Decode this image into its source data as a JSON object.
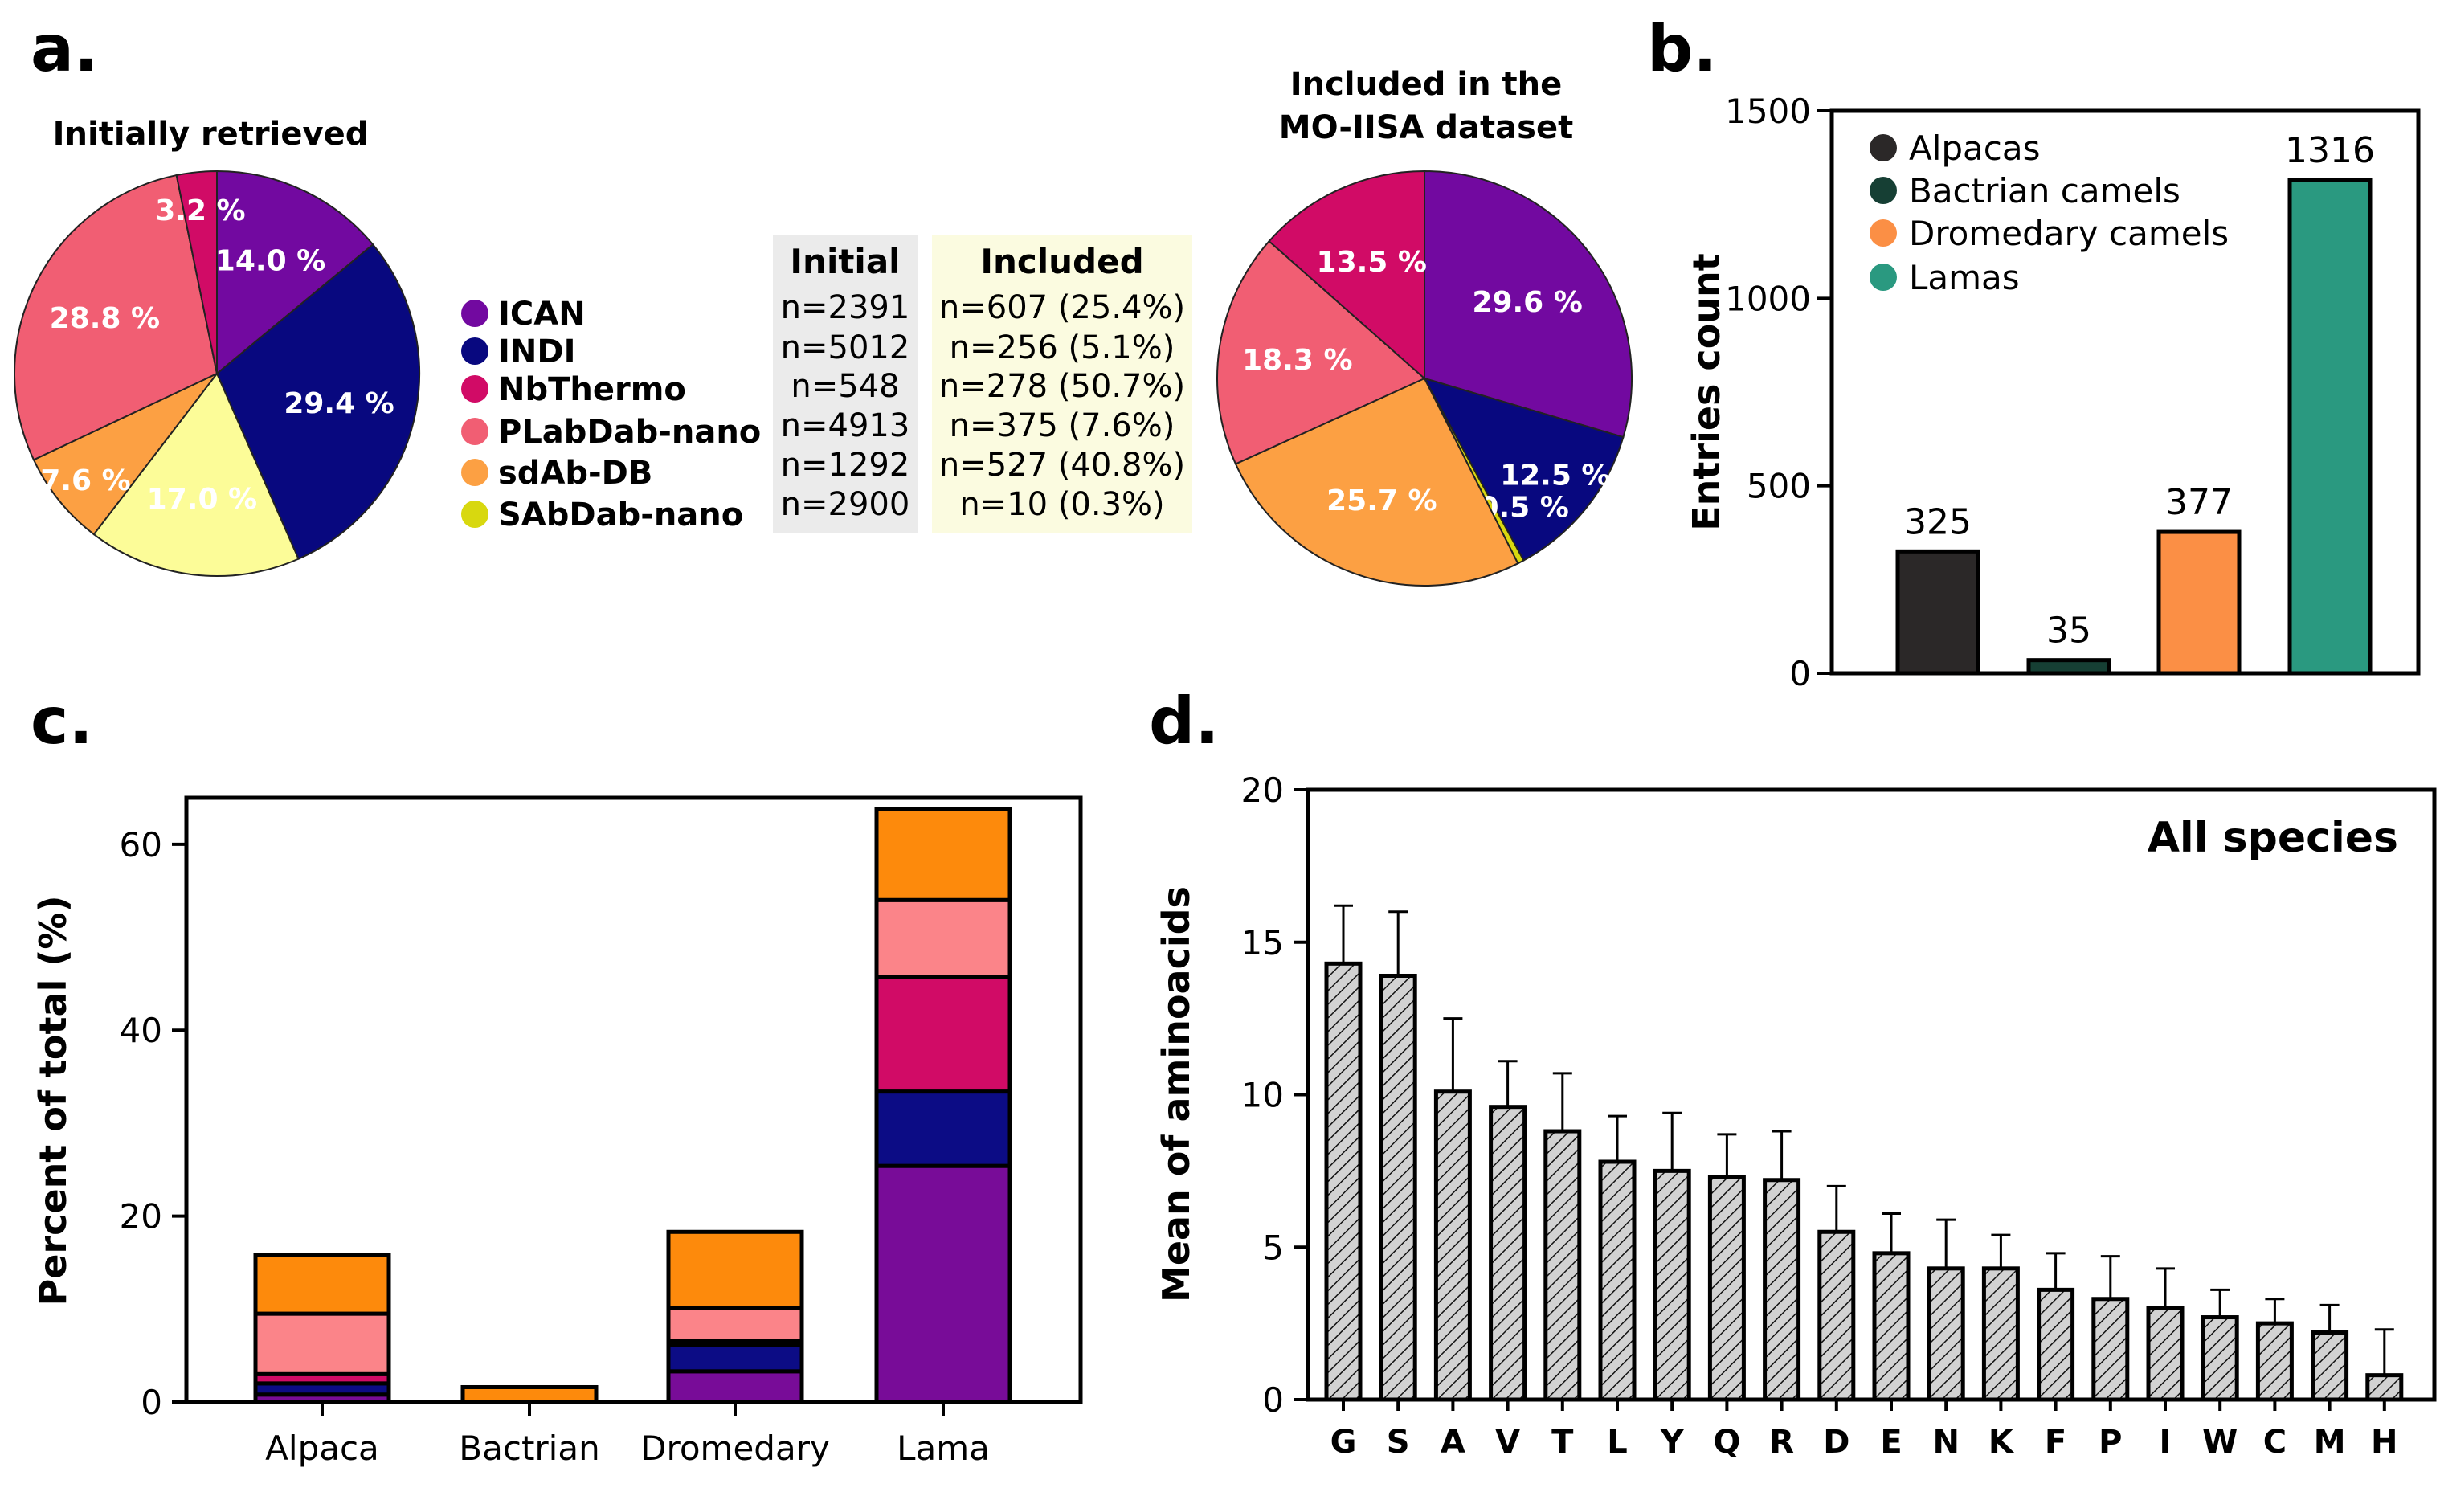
{
  "panels": {
    "a": "a.",
    "b": "b.",
    "c": "c.",
    "d": "d."
  },
  "panel_a": {
    "pie_initial_title": "Initially retrieved",
    "pie_included_title_line1": "Included in the",
    "pie_included_title_line2": "MO-IISA dataset",
    "legend": [
      {
        "name": "ICAN",
        "color": "#7209a0"
      },
      {
        "name": "INDI",
        "color": "#08087f"
      },
      {
        "name": "NbThermo",
        "color": "#d10b66"
      },
      {
        "name": "PLabDab-nano",
        "color": "#f15e73"
      },
      {
        "name": "sdAb-DB",
        "color": "#fca043"
      },
      {
        "name": "SAbDab-nano",
        "color": "#d8d80f"
      }
    ],
    "table": {
      "header_initial": "Initial",
      "header_included": "Included",
      "initial": [
        "n=2391",
        "n=5012",
        "n=548",
        "n=4913",
        "n=1292",
        "n=2900"
      ],
      "included": [
        "n=607 (25.4%)",
        "n=256 (5.1%)",
        "n=278 (50.7%)",
        "n=375 (7.6%)",
        "n=527 (40.8%)",
        "n=10 (0.3%)"
      ]
    }
  },
  "chart_data": [
    {
      "type": "pie",
      "title": "Initially retrieved",
      "labels": [
        "ICAN",
        "INDI",
        "SAbDab-nano",
        "sdAb-DB",
        "PLabDab-nano",
        "NbThermo"
      ],
      "values": [
        14.0,
        29.4,
        17.0,
        7.6,
        28.8,
        3.2
      ],
      "value_labels": [
        "14.0 %",
        "29.4 %",
        "17.0 %",
        "7.6 %",
        "28.8 %",
        "3.2 %"
      ],
      "colors": [
        "#7209a0",
        "#08087f",
        "#fcfc98",
        "#fca043",
        "#f15e73",
        "#d10b66"
      ],
      "label_colors": [
        "#ffffff",
        "#ffffff",
        "#000000",
        "#ffffff",
        "#ffffff",
        "#ffffff"
      ]
    },
    {
      "type": "pie",
      "title": "Included in the MO-IISA dataset",
      "labels": [
        "ICAN",
        "INDI",
        "SAbDab-nano",
        "sdAb-DB",
        "PLabDab-nano",
        "NbThermo"
      ],
      "values": [
        29.6,
        12.5,
        0.5,
        25.7,
        18.3,
        13.5
      ],
      "value_labels": [
        "29.6 %",
        "12.5 %",
        "0.5 %",
        "25.7 %",
        "18.3 %",
        "13.5 %"
      ],
      "colors": [
        "#7209a0",
        "#08087f",
        "#d8d80f",
        "#fca043",
        "#f15e73",
        "#d10b66"
      ],
      "label_colors": [
        "#ffffff",
        "#ffffff",
        "#ffffff",
        "#ffffff",
        "#ffffff",
        "#ffffff"
      ]
    },
    {
      "type": "bar",
      "ylabel": "Entries count",
      "ylim": [
        0,
        1500
      ],
      "yticks": [
        0,
        500,
        1000,
        1500
      ],
      "categories": [
        "Alpacas",
        "Bactrian camels",
        "Dromedary camels",
        "Lamas"
      ],
      "values": [
        325,
        35,
        377,
        1316
      ],
      "colors": [
        "#2b2828",
        "#163f34",
        "#fb8f45",
        "#2a9980"
      ],
      "legend_position": "top-left"
    },
    {
      "type": "bar",
      "stacked": true,
      "ylabel": "Percent of total (%)",
      "ylim": [
        0,
        65
      ],
      "yticks": [
        0,
        20,
        40,
        60
      ],
      "categories": [
        "Alpaca",
        "Bactrian",
        "Dromedary",
        "Lama"
      ],
      "series": [
        {
          "name": "ICAN",
          "color": "#780c98",
          "values": [
            0.8,
            0,
            3.3,
            25.4
          ]
        },
        {
          "name": "INDI",
          "color": "#0c0c85",
          "values": [
            1.2,
            0,
            2.8,
            8.0
          ]
        },
        {
          "name": "NbThermo",
          "color": "#d10b66",
          "values": [
            1.0,
            0,
            0.5,
            12.3
          ]
        },
        {
          "name": "PLabDab-nano",
          "color": "#fb8489",
          "values": [
            6.5,
            0,
            3.5,
            8.3
          ]
        },
        {
          "name": "sdAb-DB",
          "color": "#fd8a0c",
          "values": [
            6.3,
            1.6,
            8.2,
            9.8
          ]
        }
      ]
    },
    {
      "type": "bar",
      "annotation": "All species",
      "ylabel": "Mean of aminoacids",
      "ylim": [
        0,
        20
      ],
      "yticks": [
        0,
        5,
        10,
        15,
        20
      ],
      "categories": [
        "G",
        "S",
        "A",
        "V",
        "T",
        "L",
        "Y",
        "Q",
        "R",
        "D",
        "E",
        "N",
        "K",
        "F",
        "P",
        "I",
        "W",
        "C",
        "M",
        "H"
      ],
      "values": [
        14.3,
        13.9,
        10.1,
        9.6,
        8.8,
        7.8,
        7.5,
        7.3,
        7.2,
        5.5,
        4.8,
        4.3,
        4.3,
        3.6,
        3.3,
        3.0,
        2.7,
        2.5,
        2.2,
        0.8
      ],
      "errors": [
        1.9,
        2.1,
        2.4,
        1.5,
        1.9,
        1.5,
        1.9,
        1.4,
        1.6,
        1.5,
        1.3,
        1.6,
        1.1,
        1.2,
        1.4,
        1.3,
        0.9,
        0.8,
        0.9,
        1.5
      ]
    }
  ]
}
